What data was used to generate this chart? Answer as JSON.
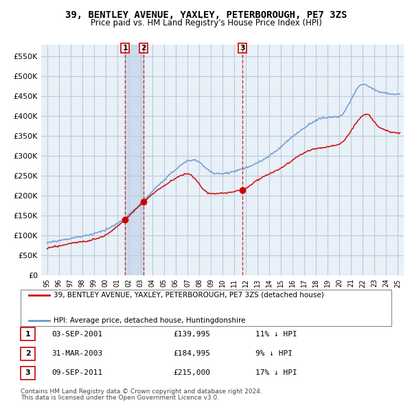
{
  "title": "39, BENTLEY AVENUE, YAXLEY, PETERBOROUGH, PE7 3ZS",
  "subtitle": "Price paid vs. HM Land Registry's House Price Index (HPI)",
  "legend_line1": "39, BENTLEY AVENUE, YAXLEY, PETERBOROUGH, PE7 3ZS (detached house)",
  "legend_line2": "HPI: Average price, detached house, Huntingdonshire",
  "transactions": [
    {
      "num": 1,
      "date_str": "03-SEP-2001",
      "price": 139995,
      "pct": "11%",
      "date_x": 2001.67
    },
    {
      "num": 2,
      "date_str": "31-MAR-2003",
      "price": 184995,
      "pct": "9%",
      "date_x": 2003.25
    },
    {
      "num": 3,
      "date_str": "09-SEP-2011",
      "price": 215000,
      "pct": "17%",
      "date_x": 2011.69
    }
  ],
  "footnote1": "Contains HM Land Registry data © Crown copyright and database right 2024.",
  "footnote2": "This data is licensed under the Open Government Licence v3.0.",
  "ylim": [
    0,
    580000
  ],
  "yticks": [
    0,
    50000,
    100000,
    150000,
    200000,
    250000,
    300000,
    350000,
    400000,
    450000,
    500000,
    550000
  ],
  "xlim_start": 1994.5,
  "xlim_end": 2025.5,
  "bg_color": "#e8f0f8",
  "grid_color": "#c0c8d8",
  "red_line_color": "#cc0000",
  "blue_line_color": "#6699cc",
  "highlight_fill": "#ccdcee",
  "transaction_marker_color": "#cc0000",
  "dashed_color": "#cc0000"
}
